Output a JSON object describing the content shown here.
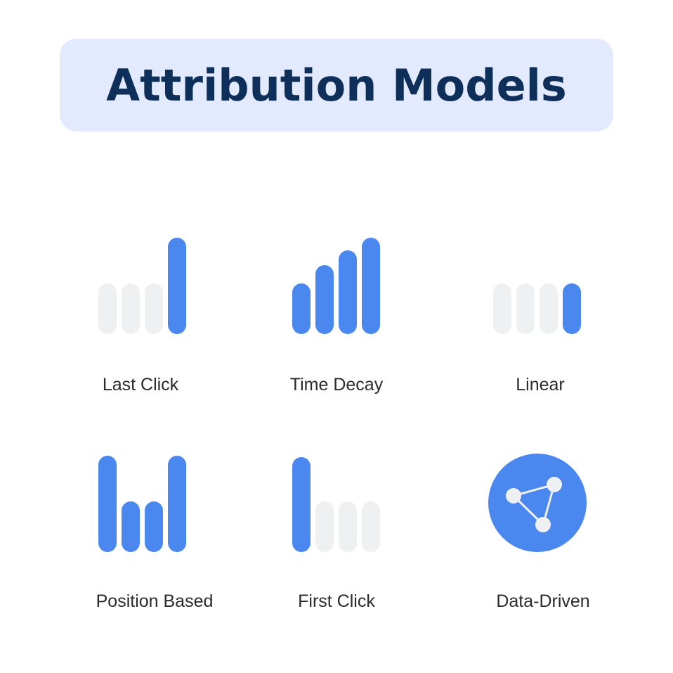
{
  "title": "Attribution Models",
  "colors": {
    "active": "#4a87ee",
    "inactive": "#eff0f2",
    "title_bg": "#e3eafd",
    "title_text": "#0d2f5a"
  },
  "models": [
    {
      "label": "Last Click",
      "bars": [
        {
          "level": 1,
          "active": false
        },
        {
          "level": 1,
          "active": false
        },
        {
          "level": 1,
          "active": false
        },
        {
          "level": 1.9,
          "active": true
        }
      ]
    },
    {
      "label": "Time Decay",
      "bars": [
        {
          "level": 1,
          "active": true
        },
        {
          "level": 1.36,
          "active": true
        },
        {
          "level": 1.65,
          "active": true
        },
        {
          "level": 1.9,
          "active": true
        }
      ]
    },
    {
      "label": "Linear",
      "bars": [
        {
          "level": 1,
          "active": false
        },
        {
          "level": 1,
          "active": false
        },
        {
          "level": 1,
          "active": false
        },
        {
          "level": 1,
          "active": true
        }
      ]
    },
    {
      "label": "Position Based",
      "bars": [
        {
          "level": 1.9,
          "active": true
        },
        {
          "level": 1,
          "active": true
        },
        {
          "level": 1,
          "active": true
        },
        {
          "level": 1.9,
          "active": true
        }
      ]
    },
    {
      "label": "First Click",
      "bars": [
        {
          "level": 1.87,
          "active": true
        },
        {
          "level": 1,
          "active": false
        },
        {
          "level": 1,
          "active": false
        },
        {
          "level": 1,
          "active": false
        }
      ]
    },
    {
      "label": "Data-Driven",
      "icon": "network-graph-icon"
    }
  ]
}
